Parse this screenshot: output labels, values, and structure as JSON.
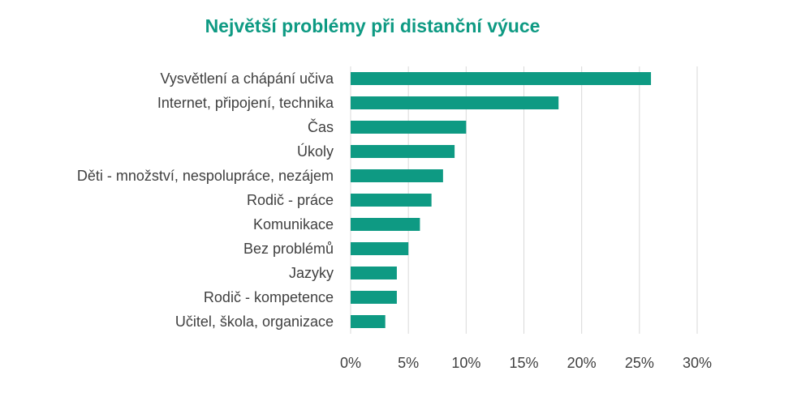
{
  "chart_data": {
    "type": "bar",
    "orientation": "horizontal",
    "title": "Největší problémy při distanční výuce",
    "xlabel": "",
    "ylabel": "",
    "categories": [
      "Vysvětlení a chápání učiva",
      "Internet, připojení, technika",
      "Čas",
      "Úkoly",
      "Děti - množství, nespolupráce, nezájem",
      "Rodič - práce",
      "Komunikace",
      "Bez problémů",
      "Jazyky",
      "Rodič - kompetence",
      "Učitel, škola, organizace"
    ],
    "values": [
      26,
      18,
      10,
      9,
      8,
      7,
      6,
      5,
      4,
      4,
      3
    ],
    "xlim": [
      0,
      30
    ],
    "ticks": [
      0,
      5,
      10,
      15,
      20,
      25,
      30
    ],
    "tick_labels": [
      "0%",
      "5%",
      "10%",
      "15%",
      "20%",
      "25%",
      "30%"
    ],
    "grid": "vertical",
    "legend": "none",
    "colors": {
      "bar": "#0E9A83",
      "title": "#0E9A83",
      "grid": "#D9D9D9",
      "text": "#404040"
    }
  }
}
